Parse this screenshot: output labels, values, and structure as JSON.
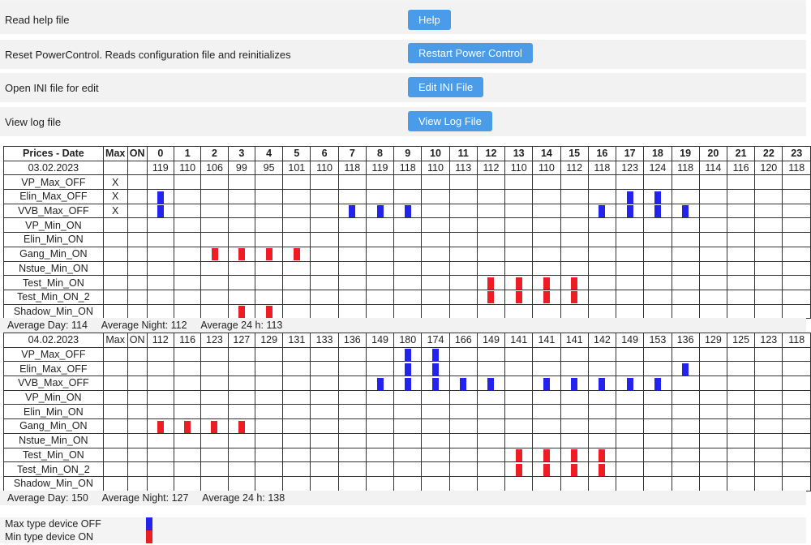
{
  "actions": [
    {
      "label": "Read help file",
      "button": "Help"
    },
    {
      "label": "Reset PowerControl. Reads configuration file and reinitializes",
      "button": "Restart Power Control"
    },
    {
      "label": "Open INI file for edit",
      "button": "Edit INI File"
    },
    {
      "label": "View log file",
      "button": "View Log File"
    }
  ],
  "header": {
    "title": "Prices - Date",
    "max": "Max",
    "on": "ON",
    "hours": [
      "0",
      "1",
      "2",
      "3",
      "4",
      "5",
      "6",
      "7",
      "8",
      "9",
      "10",
      "11",
      "12",
      "13",
      "14",
      "15",
      "16",
      "17",
      "18",
      "19",
      "20",
      "21",
      "22",
      "23"
    ]
  },
  "days": [
    {
      "date": "03.02.2023",
      "max_col": "",
      "on_col": "",
      "prices": [
        "119",
        "110",
        "106",
        "99",
        "95",
        "101",
        "110",
        "118",
        "119",
        "118",
        "110",
        "113",
        "112",
        "110",
        "110",
        "112",
        "118",
        "123",
        "124",
        "118",
        "114",
        "116",
        "120",
        "118"
      ],
      "devices": [
        {
          "name": "VP_Max_OFF",
          "max": "X",
          "type": "max",
          "hours": []
        },
        {
          "name": "Elin_Max_OFF",
          "max": "X",
          "type": "max",
          "hours": [
            0,
            17,
            18
          ]
        },
        {
          "name": "VVB_Max_OFF",
          "max": "X",
          "type": "max",
          "hours": [
            0,
            7,
            8,
            9,
            16,
            17,
            18,
            19
          ]
        },
        {
          "name": "VP_Min_ON",
          "max": "",
          "type": "min",
          "hours": []
        },
        {
          "name": "Elin_Min_ON",
          "max": "",
          "type": "min",
          "hours": []
        },
        {
          "name": "Gang_Min_ON",
          "max": "",
          "type": "min",
          "hours": [
            2,
            3,
            4,
            5
          ]
        },
        {
          "name": "Nstue_Min_ON",
          "max": "",
          "type": "min",
          "hours": []
        },
        {
          "name": "Test_Min_ON",
          "max": "",
          "type": "min",
          "hours": [
            12,
            13,
            14,
            15
          ]
        },
        {
          "name": "Test_Min_ON_2",
          "max": "",
          "type": "min",
          "hours": [
            12,
            13,
            14,
            15
          ]
        },
        {
          "name": "Shadow_Min_ON",
          "max": "",
          "type": "min",
          "hours": [
            3,
            4
          ]
        }
      ],
      "avg": {
        "day": "Average Day: 114",
        "night": "Average Night: 112",
        "full": "Average 24 h: 113"
      }
    },
    {
      "date": "04.02.2023",
      "max_col": "Max",
      "on_col": "ON",
      "prices": [
        "112",
        "116",
        "123",
        "127",
        "129",
        "131",
        "133",
        "136",
        "149",
        "180",
        "174",
        "166",
        "149",
        "141",
        "141",
        "141",
        "142",
        "149",
        "153",
        "136",
        "129",
        "125",
        "123",
        "118"
      ],
      "devices": [
        {
          "name": "VP_Max_OFF",
          "max": "",
          "type": "max",
          "hours": [
            9,
            10
          ]
        },
        {
          "name": "Elin_Max_OFF",
          "max": "",
          "type": "max",
          "hours": [
            9,
            10,
            19
          ]
        },
        {
          "name": "VVB_Max_OFF",
          "max": "",
          "type": "max",
          "hours": [
            8,
            9,
            10,
            11,
            12,
            14,
            15,
            16,
            17,
            18
          ]
        },
        {
          "name": "VP_Min_ON",
          "max": "",
          "type": "min",
          "hours": []
        },
        {
          "name": "Elin_Min_ON",
          "max": "",
          "type": "min",
          "hours": []
        },
        {
          "name": "Gang_Min_ON",
          "max": "",
          "type": "min",
          "hours": [
            0,
            1,
            2,
            3
          ]
        },
        {
          "name": "Nstue_Min_ON",
          "max": "",
          "type": "min",
          "hours": []
        },
        {
          "name": "Test_Min_ON",
          "max": "",
          "type": "min",
          "hours": [
            13,
            14,
            15,
            16
          ]
        },
        {
          "name": "Test_Min_ON_2",
          "max": "",
          "type": "min",
          "hours": [
            13,
            14,
            15,
            16
          ]
        },
        {
          "name": "Shadow_Min_ON",
          "max": "",
          "type": "min",
          "hours": []
        }
      ],
      "avg": {
        "day": "Average Day: 150",
        "night": "Average Night: 127",
        "full": "Average 24 h: 138"
      }
    }
  ],
  "legend": [
    {
      "label": "Max type device OFF",
      "color": "#2323ee"
    },
    {
      "label": "Min type device ON",
      "color": "#ee1d25"
    }
  ],
  "colors": {
    "button": "#4a9be8",
    "max_mark": "#2323ee",
    "min_mark": "#ee1d25"
  }
}
